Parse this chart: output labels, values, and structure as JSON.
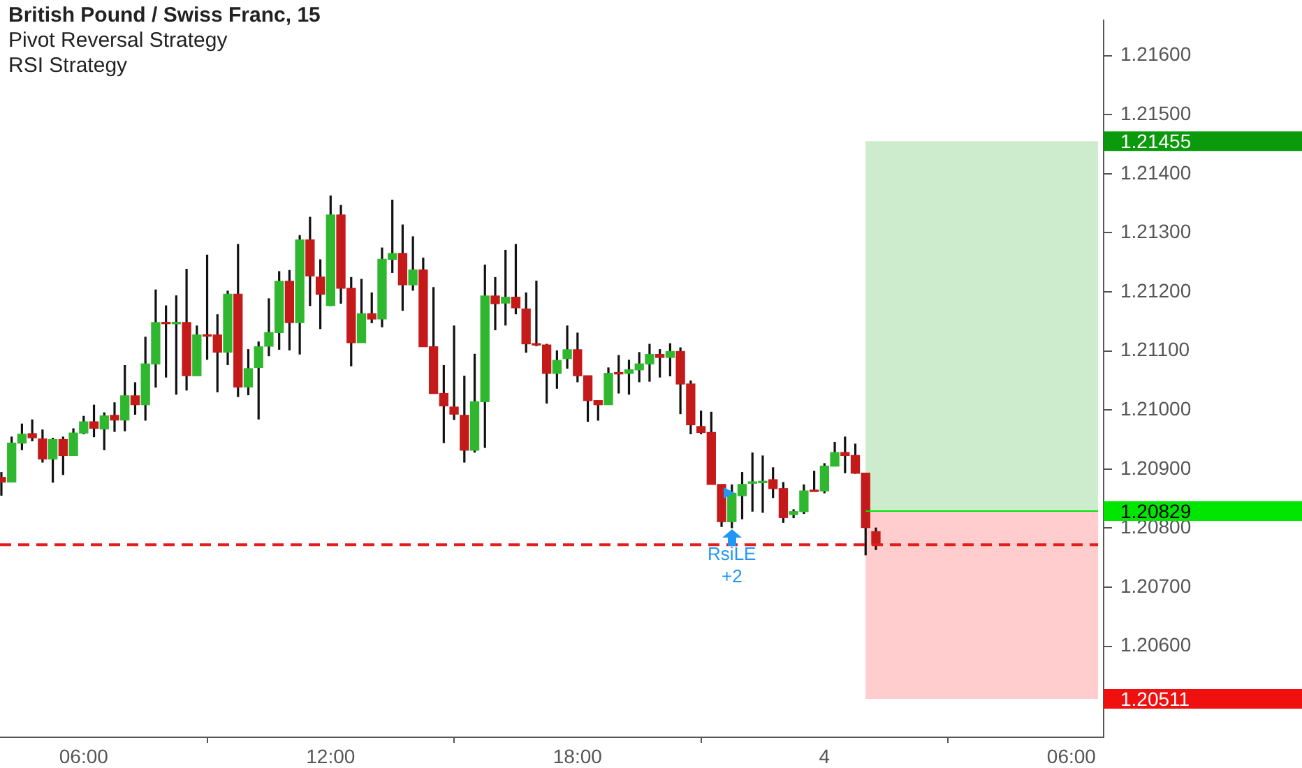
{
  "chart_data": {
    "type": "candlestick",
    "title": "British Pound / Swiss Franc, 15",
    "annotations": [
      "Pivot Reversal Strategy",
      "RSI Strategy",
      {
        "text": "RsiLE",
        "x": "--01-03T21:45",
        "y": 1.208
      },
      {
        "text": "+2",
        "x": "--01-03T21:45",
        "y": 1.208
      }
    ],
    "x": [
      "--01-03T04:00",
      "--01-03T04:15",
      "--01-03T04:30",
      "--01-03T04:45",
      "--01-03T05:00",
      "--01-03T05:15",
      "--01-03T05:30",
      "--01-03T05:45",
      "--01-03T06:00",
      "--01-03T06:15",
      "--01-03T06:30",
      "--01-03T06:45",
      "--01-03T07:00",
      "--01-03T07:15",
      "--01-03T07:30",
      "--01-03T07:45",
      "--01-03T08:00",
      "--01-03T08:15",
      "--01-03T08:30",
      "--01-03T08:45",
      "--01-03T09:00",
      "--01-03T09:15",
      "--01-03T09:30",
      "--01-03T09:45",
      "--01-03T10:00",
      "--01-03T10:15",
      "--01-03T10:30",
      "--01-03T10:45",
      "--01-03T11:00",
      "--01-03T11:15",
      "--01-03T11:30",
      "--01-03T11:45",
      "--01-03T12:00",
      "--01-03T12:15",
      "--01-03T12:30",
      "--01-03T12:45",
      "--01-03T13:00",
      "--01-03T13:15",
      "--01-03T13:30",
      "--01-03T13:45",
      "--01-03T14:00",
      "--01-03T14:15",
      "--01-03T14:30",
      "--01-03T14:45",
      "--01-03T15:00",
      "--01-03T15:15",
      "--01-03T15:30",
      "--01-03T15:45",
      "--01-03T16:00",
      "--01-03T16:15",
      "--01-03T16:30",
      "--01-03T16:45",
      "--01-03T17:00",
      "--01-03T17:15",
      "--01-03T17:30",
      "--01-03T17:45",
      "--01-03T18:00",
      "--01-03T18:15",
      "--01-03T18:30",
      "--01-03T18:45",
      "--01-03T19:00",
      "--01-03T19:15",
      "--01-03T19:30",
      "--01-03T19:45",
      "--01-03T20:00",
      "--01-03T20:15",
      "--01-03T20:30",
      "--01-03T20:45",
      "--01-03T21:00",
      "--01-03T21:15",
      "--01-03T21:30",
      "--01-03T21:45",
      "--01-03T22:00",
      "--01-03T22:15",
      "--01-03T22:30",
      "--01-03T22:45",
      "--01-03T23:00",
      "--01-03T23:15",
      "--01-03T23:30",
      "--01-03T23:45",
      "--01-04T00:00",
      "--01-04T00:15",
      "--01-04T00:30",
      "--01-04T00:45",
      "--01-04T01:00",
      "--01-04T01:15"
    ],
    "ohlc": [
      [
        1.20886,
        1.20895,
        1.20855,
        1.20878
      ],
      [
        1.20878,
        1.20955,
        1.20878,
        1.20944
      ],
      [
        1.20944,
        1.20977,
        1.20932,
        1.20959
      ],
      [
        1.2096,
        1.20984,
        1.20947,
        1.20953
      ],
      [
        1.20951,
        1.20967,
        1.20911,
        1.20917
      ],
      [
        1.20917,
        1.20953,
        1.20877,
        1.2095
      ],
      [
        1.2095,
        1.20955,
        1.2089,
        1.20923
      ],
      [
        1.20923,
        1.20969,
        1.20923,
        1.20961
      ],
      [
        1.20961,
        1.2099,
        1.20959,
        1.2098
      ],
      [
        1.2098,
        1.21009,
        1.20954,
        1.20969
      ],
      [
        1.20968,
        1.20996,
        1.20932,
        1.2099
      ],
      [
        1.20991,
        1.21013,
        1.20963,
        1.20983
      ],
      [
        1.20983,
        1.21076,
        1.20964,
        1.21024
      ],
      [
        1.21024,
        1.21047,
        1.20992,
        1.21009
      ],
      [
        1.21009,
        1.21124,
        1.20982,
        1.21078
      ],
      [
        1.21078,
        1.21204,
        1.21038,
        1.21148
      ],
      [
        1.21148,
        1.21177,
        1.21055,
        1.21146
      ],
      [
        1.21146,
        1.21194,
        1.21026,
        1.21148
      ],
      [
        1.21148,
        1.21239,
        1.21033,
        1.21058
      ],
      [
        1.21058,
        1.21143,
        1.21058,
        1.21127
      ],
      [
        1.21127,
        1.21263,
        1.21085,
        1.21125
      ],
      [
        1.21127,
        1.21162,
        1.2103,
        1.21098
      ],
      [
        1.21098,
        1.21202,
        1.21076,
        1.21196
      ],
      [
        1.21196,
        1.21281,
        1.21022,
        1.21039
      ],
      [
        1.21039,
        1.21103,
        1.21025,
        1.2107
      ],
      [
        1.21072,
        1.21116,
        1.20984,
        1.21107
      ],
      [
        1.21108,
        1.21189,
        1.21091,
        1.21131
      ],
      [
        1.21131,
        1.21235,
        1.21102,
        1.21218
      ],
      [
        1.21218,
        1.21237,
        1.21101,
        1.21148
      ],
      [
        1.21148,
        1.21296,
        1.21094,
        1.21288
      ],
      [
        1.21288,
        1.21327,
        1.21176,
        1.21227
      ],
      [
        1.21225,
        1.21255,
        1.21137,
        1.21196
      ],
      [
        1.21177,
        1.21363,
        1.21176,
        1.2133
      ],
      [
        1.2133,
        1.21347,
        1.2118,
        1.21206
      ],
      [
        1.21206,
        1.21225,
        1.21074,
        1.21114
      ],
      [
        1.21114,
        1.21222,
        1.21114,
        1.21163
      ],
      [
        1.21163,
        1.21199,
        1.21147,
        1.21154
      ],
      [
        1.21154,
        1.21275,
        1.2114,
        1.21255
      ],
      [
        1.21255,
        1.21356,
        1.21232,
        1.21265
      ],
      [
        1.21265,
        1.21314,
        1.21168,
        1.21212
      ],
      [
        1.21212,
        1.21294,
        1.21202,
        1.21237
      ],
      [
        1.21237,
        1.21258,
        1.21107,
        1.21107
      ],
      [
        1.21107,
        1.21208,
        1.21028,
        1.21028
      ],
      [
        1.21028,
        1.21076,
        1.20944,
        1.21007
      ],
      [
        1.21005,
        1.21143,
        1.20983,
        1.20993
      ],
      [
        1.20991,
        1.21058,
        1.20911,
        1.20932
      ],
      [
        1.20932,
        1.21095,
        1.20928,
        1.21014
      ],
      [
        1.21014,
        1.21246,
        1.20936,
        1.21193
      ],
      [
        1.21193,
        1.21225,
        1.21135,
        1.2118
      ],
      [
        1.21181,
        1.21271,
        1.21143,
        1.21191
      ],
      [
        1.21191,
        1.21281,
        1.21162,
        1.21173
      ],
      [
        1.21171,
        1.21199,
        1.21097,
        1.21112
      ],
      [
        1.21112,
        1.21219,
        1.21108,
        1.2111
      ],
      [
        1.2111,
        1.21112,
        1.21011,
        1.21062
      ],
      [
        1.21062,
        1.21101,
        1.21036,
        1.21084
      ],
      [
        1.21087,
        1.21143,
        1.2107,
        1.21102
      ],
      [
        1.21102,
        1.21131,
        1.21047,
        1.21058
      ],
      [
        1.21058,
        1.21058,
        1.2098,
        1.21016
      ],
      [
        1.21016,
        1.21016,
        1.20982,
        1.21009
      ],
      [
        1.21009,
        1.21072,
        1.21009,
        1.21062
      ],
      [
        1.21062,
        1.21093,
        1.21028,
        1.21061
      ],
      [
        1.21062,
        1.21085,
        1.21026,
        1.21068
      ],
      [
        1.21068,
        1.21098,
        1.21047,
        1.21078
      ],
      [
        1.21078,
        1.21112,
        1.21048,
        1.21094
      ],
      [
        1.21094,
        1.21103,
        1.21055,
        1.21089
      ],
      [
        1.21089,
        1.21113,
        1.21057,
        1.21099
      ],
      [
        1.21099,
        1.21106,
        1.20993,
        1.21044
      ],
      [
        1.21044,
        1.2105,
        1.20959,
        1.20975
      ],
      [
        1.20972,
        1.20999,
        1.20959,
        1.20962
      ],
      [
        1.20962,
        1.20997,
        1.20874,
        1.20874
      ],
      [
        1.20874,
        1.20874,
        1.20802,
        1.20811
      ],
      [
        1.20811,
        1.20874,
        1.208,
        1.20859
      ],
      [
        1.20855,
        1.20895,
        1.20815,
        1.20874
      ],
      [
        1.20876,
        1.20928,
        1.20828,
        1.20877
      ],
      [
        1.20877,
        1.20923,
        1.20826,
        1.20878
      ],
      [
        1.20882,
        1.20903,
        1.20851,
        1.20867
      ],
      [
        1.20867,
        1.20878,
        1.20809,
        1.20818
      ],
      [
        1.20823,
        1.20832,
        1.20817,
        1.20828
      ],
      [
        1.20828,
        1.20874,
        1.20824,
        1.20863
      ],
      [
        1.20863,
        1.20897,
        1.20862,
        1.20862
      ],
      [
        1.20863,
        1.2091,
        1.20859,
        1.20905
      ],
      [
        1.20905,
        1.20946,
        1.20905,
        1.20928
      ],
      [
        1.20928,
        1.20955,
        1.20893,
        1.20923
      ],
      [
        1.20923,
        1.20943,
        1.20892,
        1.20893
      ],
      [
        1.20893,
        1.20893,
        1.20754,
        1.20801
      ],
      [
        1.20794,
        1.20801,
        1.20763,
        1.20772
      ]
    ],
    "colors": [
      "#c41a1a",
      "#2fb82f",
      "#2fb82f",
      "#c41a1a",
      "#c41a1a",
      "#2fb82f",
      "#c41a1a",
      "#2fb82f",
      "#2fb82f",
      "#c41a1a",
      "#2fb82f",
      "#c41a1a",
      "#2fb82f",
      "#c41a1a",
      "#2fb82f",
      "#2fb82f",
      "#c41a1a",
      "#2fb82f",
      "#c41a1a",
      "#2fb82f",
      "#c41a1a",
      "#c41a1a",
      "#2fb82f",
      "#c41a1a",
      "#2fb82f",
      "#2fb82f",
      "#2fb82f",
      "#2fb82f",
      "#c41a1a",
      "#2fb82f",
      "#c41a1a",
      "#c41a1a",
      "#2fb82f",
      "#c41a1a",
      "#c41a1a",
      "#2fb82f",
      "#c41a1a",
      "#2fb82f",
      "#2fb82f",
      "#c41a1a",
      "#2fb82f",
      "#c41a1a",
      "#c41a1a",
      "#c41a1a",
      "#c41a1a",
      "#c41a1a",
      "#2fb82f",
      "#2fb82f",
      "#c41a1a",
      "#2fb82f",
      "#c41a1a",
      "#c41a1a",
      "#c41a1a",
      "#c41a1a",
      "#2fb82f",
      "#2fb82f",
      "#c41a1a",
      "#c41a1a",
      "#c41a1a",
      "#2fb82f",
      "#c41a1a",
      "#2fb82f",
      "#2fb82f",
      "#2fb82f",
      "#c41a1a",
      "#2fb82f",
      "#c41a1a",
      "#c41a1a",
      "#c41a1a",
      "#c41a1a",
      "#c41a1a",
      "#2fb82f",
      "#2fb82f",
      "#2fb82f",
      "#2fb82f",
      "#c41a1a",
      "#c41a1a",
      "#2fb82f",
      "#2fb82f",
      "#c41a1a",
      "#2fb82f",
      "#2fb82f",
      "#c41a1a",
      "#c41a1a",
      "#c41a1a",
      "#c41a1a"
    ],
    "xlim": [
      "--01-03T03:58",
      "--01-04T06:47"
    ],
    "xticks": [
      {
        "value": "--01-03T06:00",
        "label": "06:00"
      },
      {
        "value": "--01-03T12:00",
        "label": "12:00"
      },
      {
        "value": "--01-03T18:00",
        "label": "18:00"
      },
      {
        "value": "--01-04T00:00",
        "label": "4"
      },
      {
        "value": "--01-04T06:00",
        "label": "06:00"
      }
    ],
    "ylim": [
      1.20446,
      1.2166
    ],
    "yticks": [
      {
        "value": 1.206,
        "label": "1.20600"
      },
      {
        "value": 1.207,
        "label": "1.20700"
      },
      {
        "value": 1.208,
        "label": "1.20800"
      },
      {
        "value": 1.209,
        "label": "1.20900"
      },
      {
        "value": 1.21,
        "label": "1.21000"
      },
      {
        "value": 1.211,
        "label": "1.21100"
      },
      {
        "value": 1.212,
        "label": "1.21200"
      },
      {
        "value": 1.213,
        "label": "1.21300"
      },
      {
        "value": 1.214,
        "label": "1.21400"
      },
      {
        "value": 1.215,
        "label": "1.21500"
      },
      {
        "value": 1.216,
        "label": "1.21600"
      }
    ],
    "ref_lines": [
      {
        "axis": "y",
        "value": 1.20772,
        "color": "#e31c1c",
        "line_style": "dashed"
      },
      {
        "axis": "y",
        "value": 1.20829,
        "label": "1.20829",
        "color": "#00e600"
      }
    ],
    "bands": [
      {
        "axis": "y",
        "from": 1.20829,
        "to": 1.21455,
        "label": "1.21455",
        "color": "#cdeccd"
      },
      {
        "axis": "y",
        "from": 1.20511,
        "to": 1.20829,
        "label": "1.20511",
        "color": "#ffcdcd"
      }
    ]
  }
}
